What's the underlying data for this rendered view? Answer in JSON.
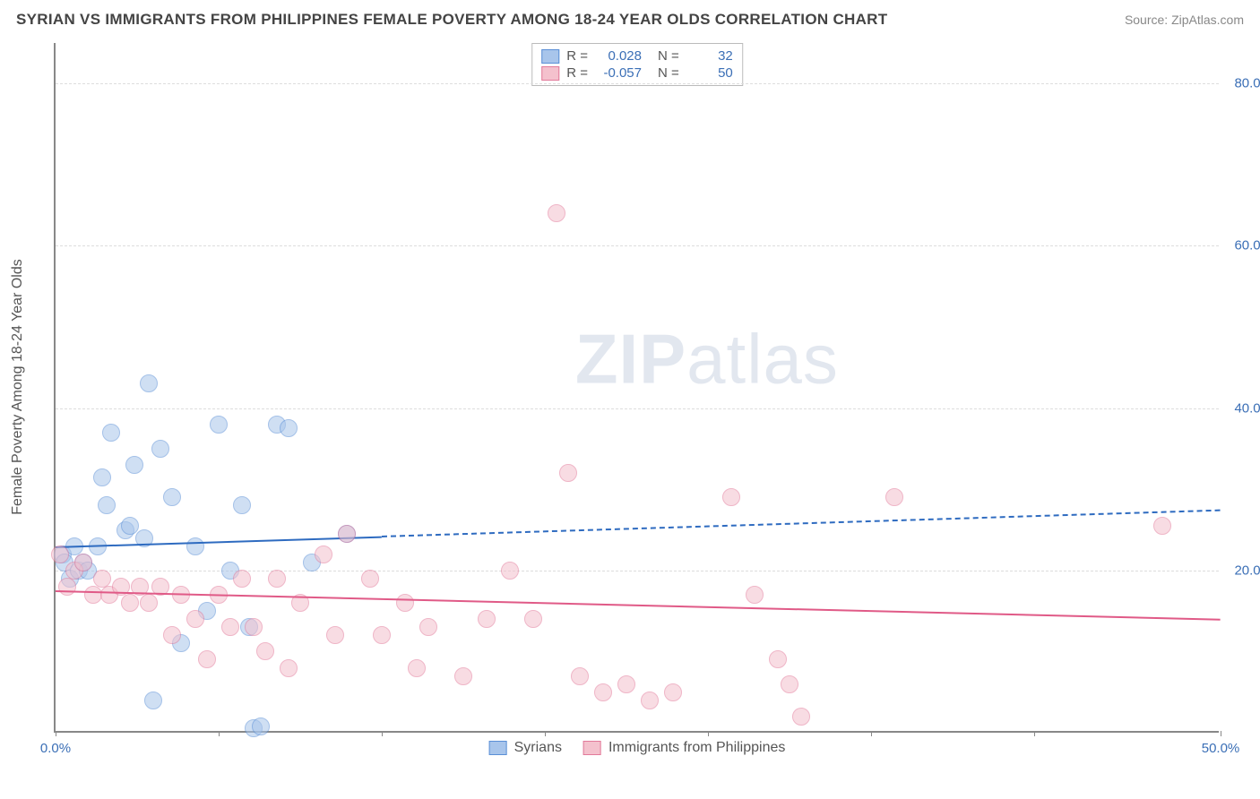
{
  "title": "SYRIAN VS IMMIGRANTS FROM PHILIPPINES FEMALE POVERTY AMONG 18-24 YEAR OLDS CORRELATION CHART",
  "source": "Source: ZipAtlas.com",
  "watermark_bold": "ZIP",
  "watermark_light": "atlas",
  "y_axis_label": "Female Poverty Among 18-24 Year Olds",
  "chart": {
    "type": "scatter",
    "xlim": [
      0,
      50
    ],
    "ylim": [
      0,
      85
    ],
    "x_ticks": [
      0,
      7,
      14,
      21,
      28,
      35,
      42,
      50
    ],
    "x_tick_labels": {
      "0": "0.0%",
      "50": "50.0%"
    },
    "y_gridlines": [
      20,
      40,
      60,
      80
    ],
    "y_tick_labels": {
      "20": "20.0%",
      "40": "40.0%",
      "60": "60.0%",
      "80": "80.0%"
    },
    "background_color": "#ffffff",
    "grid_color": "#dddddd",
    "axis_color": "#888888",
    "tick_label_color": "#3b6fb6",
    "point_radius": 10,
    "point_opacity": 0.55
  },
  "series": [
    {
      "name": "Syrians",
      "fill": "#a8c5eb",
      "stroke": "#5a8fd6",
      "line_color": "#2e6bc0",
      "r": 0.028,
      "n": 32,
      "trend": {
        "x1": 0,
        "y1": 23.0,
        "x_solid_end": 14,
        "x2": 50,
        "y2": 27.5
      },
      "points": [
        [
          0.3,
          22
        ],
        [
          0.4,
          21
        ],
        [
          0.6,
          19
        ],
        [
          0.8,
          23
        ],
        [
          1.0,
          20
        ],
        [
          1.2,
          21
        ],
        [
          1.4,
          20
        ],
        [
          1.8,
          23
        ],
        [
          2.0,
          31.5
        ],
        [
          2.2,
          28
        ],
        [
          2.4,
          37
        ],
        [
          3.0,
          25
        ],
        [
          3.2,
          25.5
        ],
        [
          3.4,
          33
        ],
        [
          3.8,
          24
        ],
        [
          4.0,
          43
        ],
        [
          4.2,
          4
        ],
        [
          4.5,
          35
        ],
        [
          5.0,
          29
        ],
        [
          5.4,
          11
        ],
        [
          6.0,
          23
        ],
        [
          6.5,
          15
        ],
        [
          7.0,
          38
        ],
        [
          7.5,
          20
        ],
        [
          8.0,
          28
        ],
        [
          8.3,
          13
        ],
        [
          8.5,
          0.5
        ],
        [
          8.8,
          0.8
        ],
        [
          9.5,
          38
        ],
        [
          10.0,
          37.5
        ],
        [
          11.0,
          21
        ],
        [
          12.5,
          24.5
        ]
      ]
    },
    {
      "name": "Immigrants from Philippines",
      "fill": "#f4c1cd",
      "stroke": "#e27a9a",
      "line_color": "#e05a87",
      "r": -0.057,
      "n": 50,
      "trend": {
        "x1": 0,
        "y1": 17.5,
        "x_solid_end": 50,
        "x2": 50,
        "y2": 14.0
      },
      "points": [
        [
          0.2,
          22
        ],
        [
          0.5,
          18
        ],
        [
          0.8,
          20
        ],
        [
          1.2,
          21
        ],
        [
          1.6,
          17
        ],
        [
          2.0,
          19
        ],
        [
          2.3,
          17
        ],
        [
          2.8,
          18
        ],
        [
          3.2,
          16
        ],
        [
          3.6,
          18
        ],
        [
          4.0,
          16
        ],
        [
          4.5,
          18
        ],
        [
          5.0,
          12
        ],
        [
          5.4,
          17
        ],
        [
          6.0,
          14
        ],
        [
          6.5,
          9
        ],
        [
          7.0,
          17
        ],
        [
          7.5,
          13
        ],
        [
          8.0,
          19
        ],
        [
          8.5,
          13
        ],
        [
          9.0,
          10
        ],
        [
          9.5,
          19
        ],
        [
          10.0,
          8
        ],
        [
          10.5,
          16
        ],
        [
          11.5,
          22
        ],
        [
          12.0,
          12
        ],
        [
          12.5,
          24.5
        ],
        [
          13.5,
          19
        ],
        [
          14.0,
          12
        ],
        [
          15.0,
          16
        ],
        [
          15.5,
          8
        ],
        [
          16.0,
          13
        ],
        [
          17.5,
          7
        ],
        [
          18.5,
          14
        ],
        [
          19.5,
          20
        ],
        [
          20.5,
          14
        ],
        [
          21.5,
          64
        ],
        [
          22.0,
          32
        ],
        [
          22.5,
          7
        ],
        [
          23.5,
          5
        ],
        [
          24.5,
          6
        ],
        [
          25.5,
          4
        ],
        [
          26.5,
          5
        ],
        [
          29.0,
          29
        ],
        [
          30.0,
          17
        ],
        [
          31.0,
          9
        ],
        [
          31.5,
          6
        ],
        [
          32.0,
          2
        ],
        [
          36.0,
          29
        ],
        [
          47.5,
          25.5
        ]
      ]
    }
  ],
  "corr_legend": {
    "r_label": "R =",
    "n_label": "N ="
  }
}
